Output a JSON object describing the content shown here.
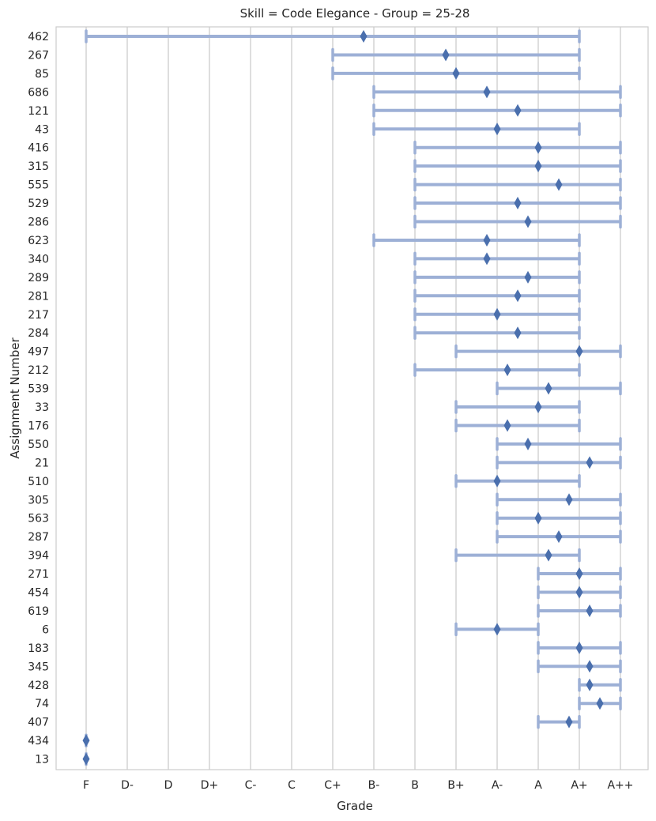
{
  "chart_data": {
    "type": "range-dot",
    "title": "Skill = Code Elegance - Group = 25-28",
    "xlabel": "Grade",
    "ylabel": "Assignment Number",
    "x_categories": [
      "F",
      "D-",
      "D",
      "D+",
      "C-",
      "C",
      "C+",
      "B-",
      "B",
      "B+",
      "A-",
      "A",
      "A+",
      "A++"
    ],
    "grid": "vertical",
    "colors": {
      "range": "#9db0d6",
      "marker": "#4a6fad",
      "grid": "#d3d3d3",
      "frame": "#cccccc"
    },
    "rows": [
      {
        "id": "462",
        "low": 0,
        "high": 12,
        "mean": 6.75
      },
      {
        "id": "267",
        "low": 6,
        "high": 12,
        "mean": 8.75
      },
      {
        "id": "85",
        "low": 6,
        "high": 12,
        "mean": 9.0
      },
      {
        "id": "686",
        "low": 7,
        "high": 13,
        "mean": 9.75
      },
      {
        "id": "121",
        "low": 7,
        "high": 13,
        "mean": 10.5
      },
      {
        "id": "43",
        "low": 7,
        "high": 12,
        "mean": 10.0
      },
      {
        "id": "416",
        "low": 8,
        "high": 13,
        "mean": 11.0
      },
      {
        "id": "315",
        "low": 8,
        "high": 13,
        "mean": 11.0
      },
      {
        "id": "555",
        "low": 8,
        "high": 13,
        "mean": 11.5
      },
      {
        "id": "529",
        "low": 8,
        "high": 13,
        "mean": 10.5
      },
      {
        "id": "286",
        "low": 8,
        "high": 13,
        "mean": 10.75
      },
      {
        "id": "623",
        "low": 7,
        "high": 12,
        "mean": 9.75
      },
      {
        "id": "340",
        "low": 8,
        "high": 12,
        "mean": 9.75
      },
      {
        "id": "289",
        "low": 8,
        "high": 12,
        "mean": 10.75
      },
      {
        "id": "281",
        "low": 8,
        "high": 12,
        "mean": 10.5
      },
      {
        "id": "217",
        "low": 8,
        "high": 12,
        "mean": 10.0
      },
      {
        "id": "284",
        "low": 8,
        "high": 12,
        "mean": 10.5
      },
      {
        "id": "497",
        "low": 9,
        "high": 13,
        "mean": 12.0
      },
      {
        "id": "212",
        "low": 8,
        "high": 12,
        "mean": 10.25
      },
      {
        "id": "539",
        "low": 10,
        "high": 13,
        "mean": 11.25
      },
      {
        "id": "33",
        "low": 9,
        "high": 12,
        "mean": 11.0
      },
      {
        "id": "176",
        "low": 9,
        "high": 12,
        "mean": 10.25
      },
      {
        "id": "550",
        "low": 10,
        "high": 13,
        "mean": 10.75
      },
      {
        "id": "21",
        "low": 10,
        "high": 13,
        "mean": 12.25
      },
      {
        "id": "510",
        "low": 9,
        "high": 12,
        "mean": 10.0
      },
      {
        "id": "305",
        "low": 10,
        "high": 13,
        "mean": 11.75
      },
      {
        "id": "563",
        "low": 10,
        "high": 13,
        "mean": 11.0
      },
      {
        "id": "287",
        "low": 10,
        "high": 13,
        "mean": 11.5
      },
      {
        "id": "394",
        "low": 9,
        "high": 12,
        "mean": 11.25
      },
      {
        "id": "271",
        "low": 11,
        "high": 13,
        "mean": 12.0
      },
      {
        "id": "454",
        "low": 11,
        "high": 13,
        "mean": 12.0
      },
      {
        "id": "619",
        "low": 11,
        "high": 13,
        "mean": 12.25
      },
      {
        "id": "6",
        "low": 9,
        "high": 11,
        "mean": 10.0
      },
      {
        "id": "183",
        "low": 11,
        "high": 13,
        "mean": 12.0
      },
      {
        "id": "345",
        "low": 11,
        "high": 13,
        "mean": 12.25
      },
      {
        "id": "428",
        "low": 12,
        "high": 13,
        "mean": 12.25
      },
      {
        "id": "74",
        "low": 12,
        "high": 13,
        "mean": 12.5
      },
      {
        "id": "407",
        "low": 11,
        "high": 12,
        "mean": 11.75
      },
      {
        "id": "434",
        "low": 0,
        "high": 0,
        "mean": 0.0
      },
      {
        "id": "13",
        "low": 0,
        "high": 0,
        "mean": 0.0
      }
    ]
  }
}
